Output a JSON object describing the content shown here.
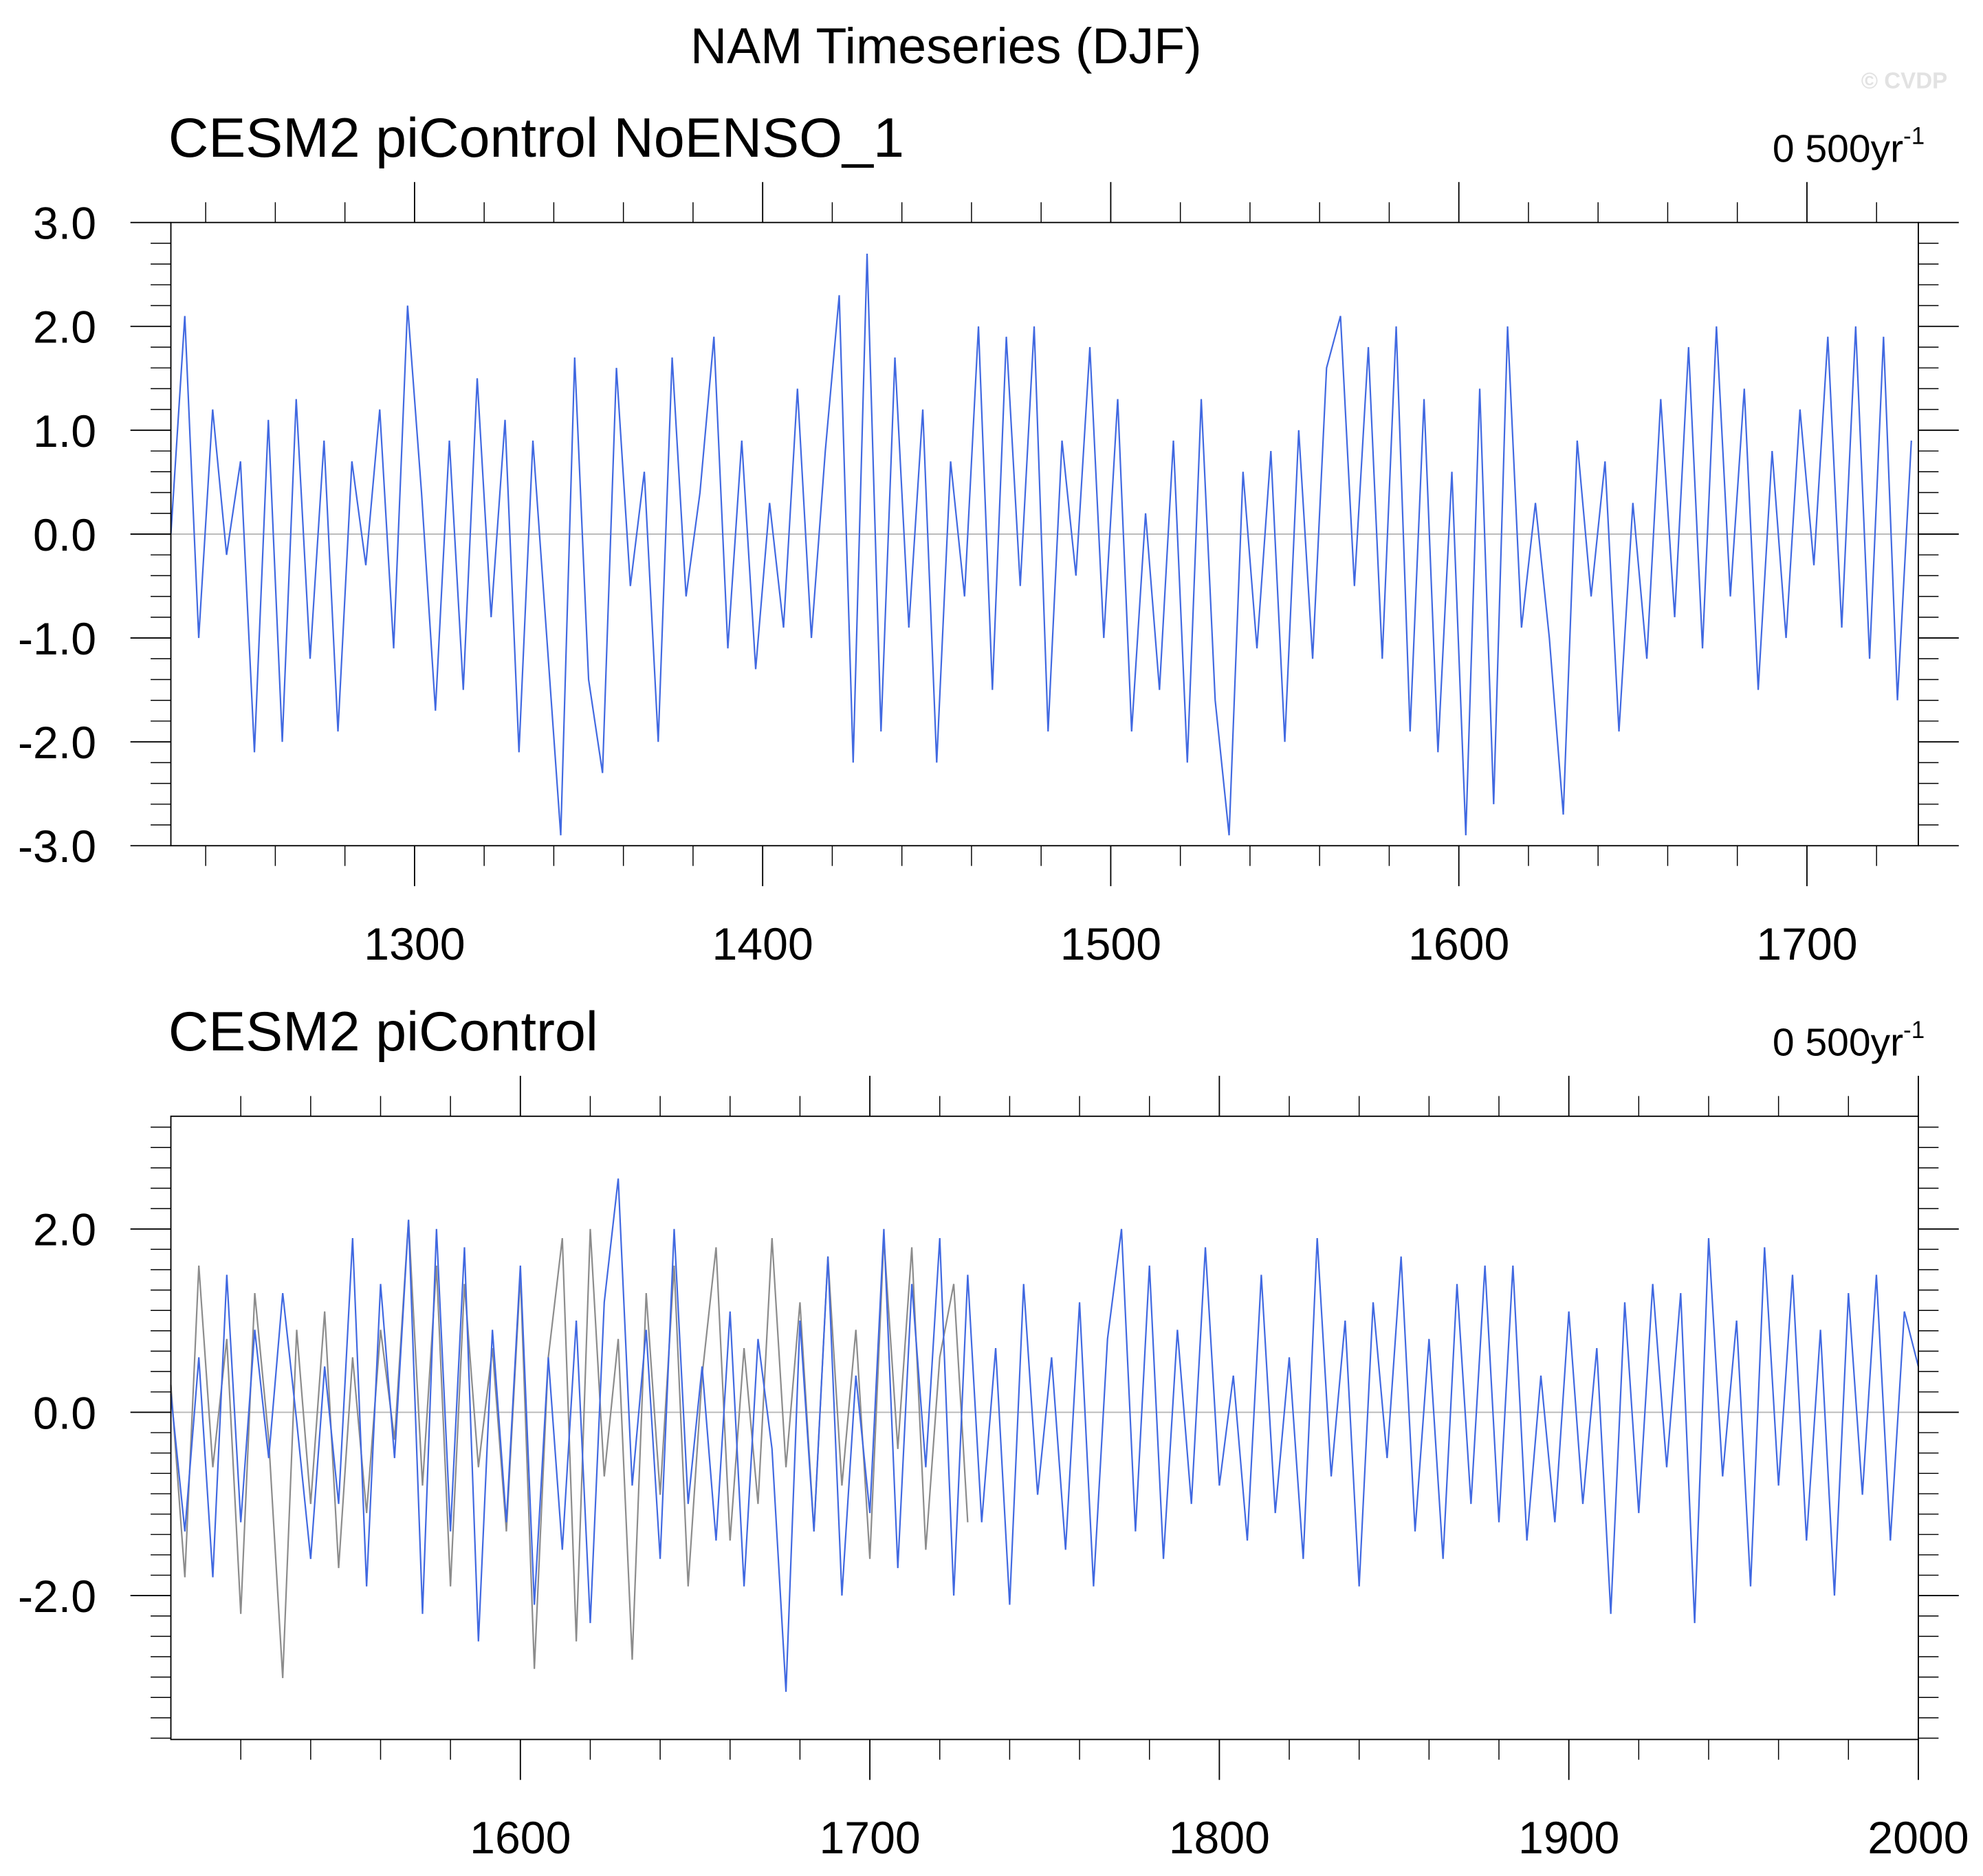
{
  "title": "NAM Timeseries (DJF)",
  "watermark": "© CVDP",
  "chart_data": [
    {
      "type": "line",
      "subtitle": "CESM2 piControl NoENSO_1",
      "trend_label": "0 500yr",
      "trend_label_sup": "-1",
      "xlim": [
        1230,
        1732
      ],
      "xticks": [
        1300,
        1400,
        1500,
        1600,
        1700
      ],
      "ylim": [
        -3,
        3
      ],
      "yticks": [
        {
          "value": -3,
          "label": "-3.0"
        },
        {
          "value": -2,
          "label": "-2.0"
        },
        {
          "value": -1,
          "label": "-1.0"
        },
        {
          "value": 0,
          "label": "0.0"
        },
        {
          "value": 1,
          "label": "1.0"
        },
        {
          "value": 2,
          "label": "2.0"
        },
        {
          "value": 3,
          "label": "3.0"
        }
      ],
      "reference_line": 0,
      "x": [
        1230,
        1234,
        1238,
        1242,
        1246,
        1250,
        1254,
        1258,
        1262,
        1266,
        1270,
        1274,
        1278,
        1282,
        1286,
        1290,
        1294,
        1298,
        1302,
        1306,
        1310,
        1314,
        1318,
        1322,
        1326,
        1330,
        1334,
        1338,
        1342,
        1346,
        1350,
        1354,
        1358,
        1362,
        1366,
        1370,
        1374,
        1378,
        1382,
        1386,
        1390,
        1394,
        1398,
        1402,
        1406,
        1410,
        1414,
        1418,
        1422,
        1426,
        1430,
        1434,
        1438,
        1442,
        1446,
        1450,
        1454,
        1458,
        1462,
        1466,
        1470,
        1474,
        1478,
        1482,
        1486,
        1490,
        1494,
        1498,
        1502,
        1506,
        1510,
        1514,
        1518,
        1522,
        1526,
        1530,
        1534,
        1538,
        1542,
        1546,
        1550,
        1554,
        1558,
        1562,
        1566,
        1570,
        1574,
        1578,
        1582,
        1586,
        1590,
        1594,
        1598,
        1602,
        1606,
        1610,
        1614,
        1618,
        1622,
        1626,
        1630,
        1634,
        1638,
        1642,
        1646,
        1650,
        1654,
        1658,
        1662,
        1666,
        1670,
        1674,
        1678,
        1682,
        1686,
        1690,
        1694,
        1698,
        1702,
        1706,
        1710,
        1714,
        1718,
        1722,
        1726,
        1730
      ],
      "series": [
        {
          "color": "#4169e1",
          "values": [
            0.0,
            2.1,
            -1.0,
            1.2,
            -0.2,
            0.7,
            -2.1,
            1.1,
            -2.0,
            1.3,
            -1.2,
            0.9,
            -1.9,
            0.7,
            -0.3,
            1.2,
            -1.1,
            2.2,
            0.4,
            -1.7,
            0.9,
            -1.5,
            1.5,
            -0.8,
            1.1,
            -2.1,
            0.9,
            -1.0,
            -2.9,
            1.7,
            -1.4,
            -2.3,
            1.6,
            -0.5,
            0.6,
            -2.0,
            1.7,
            -0.6,
            0.4,
            1.9,
            -1.1,
            0.9,
            -1.3,
            0.3,
            -0.9,
            1.4,
            -1.0,
            0.8,
            2.3,
            -2.2,
            2.7,
            -1.9,
            1.7,
            -0.9,
            1.2,
            -2.2,
            0.7,
            -0.6,
            2.0,
            -1.5,
            1.9,
            -0.5,
            2.0,
            -1.9,
            0.9,
            -0.4,
            1.8,
            -1.0,
            1.3,
            -1.9,
            0.2,
            -1.5,
            0.9,
            -2.2,
            1.3,
            -1.6,
            -2.9,
            0.6,
            -1.1,
            0.8,
            -2.0,
            1.0,
            -1.2,
            1.6,
            2.1,
            -0.5,
            1.8,
            -1.2,
            2.0,
            -1.9,
            1.3,
            -2.1,
            0.6,
            -2.9,
            1.4,
            -2.6,
            2.0,
            -0.9,
            0.3,
            -1.0,
            -2.7,
            0.9,
            -0.6,
            0.7,
            -1.9,
            0.3,
            -1.2,
            1.3,
            -0.8,
            1.8,
            -1.1,
            2.0,
            -0.6,
            1.4,
            -1.5,
            0.8,
            -1.0,
            1.2,
            -0.3,
            1.9,
            -0.9,
            2.0,
            -1.2,
            1.9,
            -1.6,
            0.9
          ]
        }
      ]
    },
    {
      "type": "line",
      "subtitle": "CESM2 piControl",
      "trend_label": "0 500yr",
      "trend_label_sup": "-1",
      "xlim": [
        1500,
        2000
      ],
      "xticks": [
        1600,
        1700,
        1800,
        1900,
        2000
      ],
      "ylim": [
        -3.57,
        3.23
      ],
      "yticks": [
        {
          "value": -2,
          "label": "-2.0"
        },
        {
          "value": 0,
          "label": "0.0"
        },
        {
          "value": 2,
          "label": "2.0"
        }
      ],
      "reference_line": 0,
      "x": [
        1500,
        1504,
        1508,
        1512,
        1516,
        1520,
        1524,
        1528,
        1532,
        1536,
        1540,
        1544,
        1548,
        1552,
        1556,
        1560,
        1564,
        1568,
        1572,
        1576,
        1580,
        1584,
        1588,
        1592,
        1596,
        1600,
        1604,
        1608,
        1612,
        1616,
        1620,
        1624,
        1628,
        1632,
        1636,
        1640,
        1644,
        1648,
        1652,
        1656,
        1660,
        1664,
        1668,
        1672,
        1676,
        1680,
        1684,
        1688,
        1692,
        1696,
        1700,
        1704,
        1708,
        1712,
        1716,
        1720,
        1724,
        1728,
        1732,
        1736,
        1740,
        1744,
        1748,
        1752,
        1756,
        1760,
        1764,
        1768,
        1772,
        1776,
        1780,
        1784,
        1788,
        1792,
        1796,
        1800,
        1804,
        1808,
        1812,
        1816,
        1820,
        1824,
        1828,
        1832,
        1836,
        1840,
        1844,
        1848,
        1852,
        1856,
        1860,
        1864,
        1868,
        1872,
        1876,
        1880,
        1884,
        1888,
        1892,
        1896,
        1900,
        1904,
        1908,
        1912,
        1916,
        1920,
        1924,
        1928,
        1932,
        1936,
        1940,
        1944,
        1948,
        1952,
        1956,
        1960,
        1964,
        1968,
        1972,
        1976,
        1980,
        1984,
        1988,
        1992,
        1996,
        2000
      ],
      "series": [
        {
          "color": "#8c8c8c",
          "values": [
            0.3,
            -1.8,
            1.6,
            -0.6,
            0.8,
            -2.2,
            1.3,
            -0.3,
            -2.9,
            0.9,
            -1.0,
            1.1,
            -1.7,
            0.6,
            -1.1,
            0.9,
            -0.3,
            2.1,
            -0.8,
            1.6,
            -1.9,
            1.4,
            -0.6,
            0.7,
            -1.3,
            1.5,
            -2.8,
            0.6,
            1.9,
            -2.5,
            2.0,
            -0.7,
            0.8,
            -2.7,
            1.3,
            -0.9,
            1.6,
            -1.9,
            0.4,
            1.8,
            -1.4,
            0.7,
            -1.0,
            1.9,
            -0.6,
            1.2,
            -1.3,
            1.7,
            -0.8,
            0.9,
            -1.6,
            1.9,
            -0.4,
            1.8,
            -1.5,
            0.6,
            1.4,
            -1.2,
            null,
            null,
            null,
            null,
            null,
            null,
            null,
            null,
            null,
            null,
            null,
            null,
            null,
            null,
            null,
            null,
            null,
            null,
            null,
            null,
            null,
            null,
            null,
            null,
            null,
            null,
            null,
            null,
            null,
            null,
            null,
            null,
            null,
            null,
            null,
            null,
            null,
            null,
            null,
            null,
            null,
            null,
            null,
            null,
            null,
            null,
            null,
            null,
            null,
            null,
            null,
            null,
            null,
            null,
            null,
            null,
            null,
            null,
            null,
            null,
            null,
            null,
            null,
            null,
            null,
            null,
            null,
            null
          ]
        },
        {
          "color": "#4169e1",
          "values": [
            0.2,
            -1.3,
            0.6,
            -1.8,
            1.5,
            -1.2,
            0.9,
            -0.5,
            1.3,
            -0.1,
            -1.6,
            0.5,
            -1.0,
            1.9,
            -1.9,
            1.4,
            -0.5,
            2.1,
            -2.2,
            2.0,
            -1.3,
            1.8,
            -2.5,
            0.9,
            -1.2,
            1.6,
            -2.1,
            0.6,
            -1.5,
            1.0,
            -2.3,
            1.2,
            2.55,
            -0.8,
            0.9,
            -1.6,
            2.0,
            -1.0,
            0.5,
            -1.4,
            1.1,
            -1.9,
            0.8,
            -0.4,
            -3.05,
            1.0,
            -1.3,
            1.7,
            -2.0,
            0.4,
            -1.1,
            2.0,
            -1.7,
            1.4,
            -0.6,
            1.9,
            -2.0,
            1.5,
            -1.2,
            0.7,
            -2.1,
            1.4,
            -0.9,
            0.6,
            -1.5,
            1.2,
            -1.9,
            0.8,
            2.0,
            -1.3,
            1.6,
            -1.6,
            0.9,
            -1.0,
            1.8,
            -0.8,
            0.4,
            -1.4,
            1.5,
            -1.1,
            0.6,
            -1.6,
            1.9,
            -0.7,
            1.0,
            -1.9,
            1.2,
            -0.5,
            1.7,
            -1.3,
            0.8,
            -1.6,
            1.4,
            -1.0,
            1.6,
            -1.2,
            1.6,
            -1.4,
            0.4,
            -1.2,
            1.1,
            -1.0,
            0.7,
            -2.2,
            1.2,
            -1.1,
            1.4,
            -0.6,
            1.3,
            -2.3,
            1.9,
            -0.7,
            1.0,
            -1.9,
            1.8,
            -0.8,
            1.5,
            -1.4,
            0.9,
            -2.0,
            1.3,
            -0.9,
            1.5,
            -1.4,
            1.1,
            0.5
          ]
        }
      ]
    }
  ]
}
